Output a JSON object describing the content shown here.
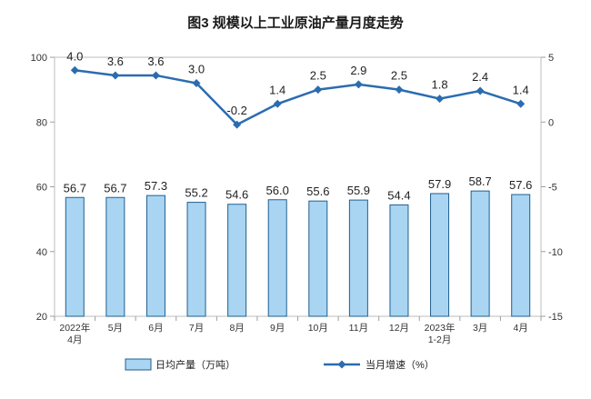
{
  "chart_data": {
    "type": "bar",
    "title": "图3  规模以上工业原油产量月度走势",
    "categories": [
      [
        "2022年",
        "4月"
      ],
      [
        "5月"
      ],
      [
        "6月"
      ],
      [
        "7月"
      ],
      [
        "8月"
      ],
      [
        "9月"
      ],
      [
        "10月"
      ],
      [
        "11月"
      ],
      [
        "12月"
      ],
      [
        "2023年",
        "1-2月"
      ],
      [
        "3月"
      ],
      [
        "4月"
      ]
    ],
    "series": [
      {
        "name": "日均产量（万吨）",
        "type": "bar",
        "axis": "left",
        "color": "#a9d5f2",
        "border_color": "#1f5f8f",
        "values": [
          56.7,
          56.7,
          57.3,
          55.2,
          54.6,
          56.0,
          55.6,
          55.9,
          54.4,
          57.9,
          58.7,
          57.6
        ],
        "labels": [
          "56.7",
          "56.7",
          "57.3",
          "55.2",
          "54.6",
          "56.0",
          "55.6",
          "55.9",
          "54.4",
          "57.9",
          "58.7",
          "57.6"
        ]
      },
      {
        "name": "当月增速（%）",
        "type": "line",
        "axis": "right",
        "color": "#2b6cb0",
        "values": [
          4.0,
          3.6,
          3.6,
          3.0,
          -0.2,
          1.4,
          2.5,
          2.9,
          2.5,
          1.8,
          2.4,
          1.4
        ],
        "labels": [
          "4.0",
          "3.6",
          "3.6",
          "3.0",
          "-0.2",
          "1.4",
          "2.5",
          "2.9",
          "2.5",
          "1.8",
          "2.4",
          "1.4"
        ]
      }
    ],
    "y_left": {
      "lim": [
        20,
        100
      ],
      "ticks": [
        "20",
        "40",
        "60",
        "80",
        "100"
      ]
    },
    "y_right": {
      "lim": [
        -15,
        5
      ],
      "ticks": [
        "-15",
        "-10",
        "-5",
        "0",
        "5"
      ]
    },
    "grid": false,
    "legend_position": "bottom"
  }
}
